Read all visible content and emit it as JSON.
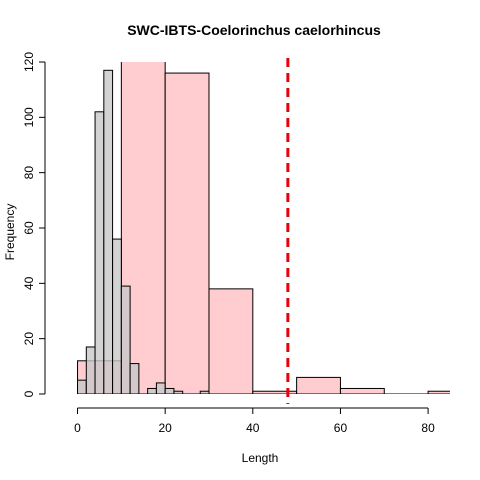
{
  "chart_data": {
    "type": "bar",
    "title": "SWC-IBTS-Coelorinchus caelorhincus",
    "xlabel": "Length",
    "ylabel": "Frequency",
    "xlim": [
      -4,
      85
    ],
    "ylim": [
      0,
      120
    ],
    "x_ticks": [
      0,
      20,
      40,
      60,
      80
    ],
    "y_ticks": [
      0,
      20,
      40,
      60,
      80,
      100,
      120
    ],
    "series": [
      {
        "fill": "#ffcccf",
        "bins": [
          {
            "x0": 0,
            "x1": 10,
            "count": 12
          },
          {
            "x0": 10,
            "x1": 20,
            "count": 122
          },
          {
            "x0": 20,
            "x1": 30,
            "count": 116
          },
          {
            "x0": 30,
            "x1": 40,
            "count": 38
          },
          {
            "x0": 40,
            "x1": 50,
            "count": 1
          },
          {
            "x0": 50,
            "x1": 60,
            "count": 6
          },
          {
            "x0": 60,
            "x1": 70,
            "count": 2
          },
          {
            "x0": 70,
            "x1": 80,
            "count": 0
          },
          {
            "x0": 80,
            "x1": 90,
            "count": 1
          }
        ]
      },
      {
        "fill": "#c8c8c8",
        "bins": [
          {
            "x0": 0,
            "x1": 2,
            "count": 5
          },
          {
            "x0": 2,
            "x1": 4,
            "count": 17
          },
          {
            "x0": 4,
            "x1": 6,
            "count": 102
          },
          {
            "x0": 6,
            "x1": 8,
            "count": 117
          },
          {
            "x0": 8,
            "x1": 10,
            "count": 56
          },
          {
            "x0": 10,
            "x1": 12,
            "count": 39
          },
          {
            "x0": 12,
            "x1": 14,
            "count": 11
          },
          {
            "x0": 14,
            "x1": 16,
            "count": 0
          },
          {
            "x0": 16,
            "x1": 18,
            "count": 2
          },
          {
            "x0": 18,
            "x1": 20,
            "count": 4
          },
          {
            "x0": 20,
            "x1": 22,
            "count": 2
          },
          {
            "x0": 22,
            "x1": 24,
            "count": 1
          },
          {
            "x0": 24,
            "x1": 26,
            "count": 0
          },
          {
            "x0": 26,
            "x1": 28,
            "count": 0
          },
          {
            "x0": 28,
            "x1": 30,
            "count": 1
          }
        ]
      }
    ],
    "reference_line": {
      "x": 48,
      "color": "#e8000b",
      "style": "dashed"
    }
  }
}
